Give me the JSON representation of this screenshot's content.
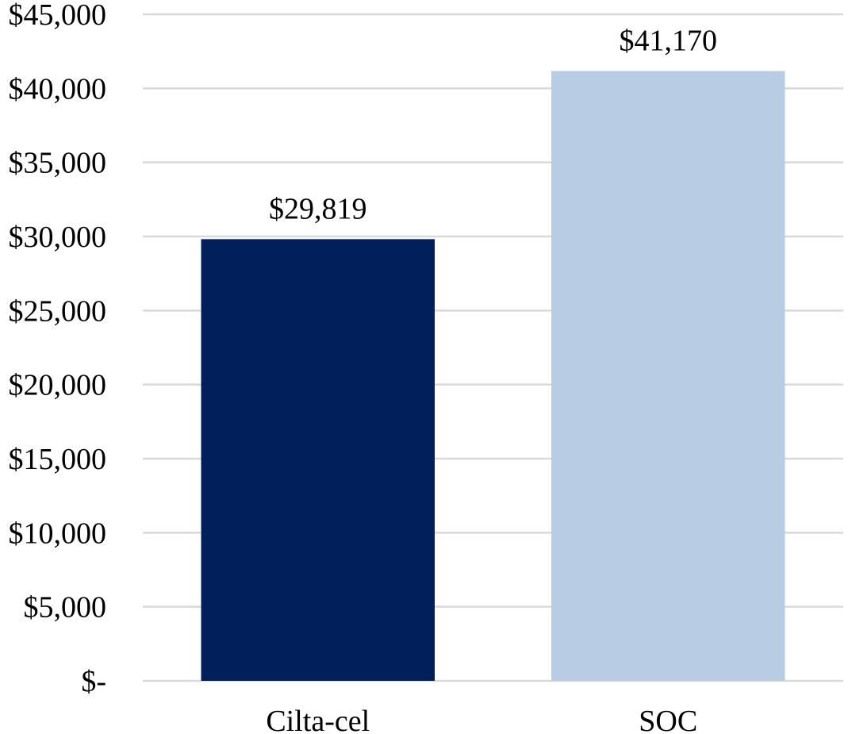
{
  "chart_data": {
    "type": "bar",
    "categories": [
      "Cilta-cel",
      "SOC"
    ],
    "values": [
      29819,
      41170
    ],
    "data_labels": [
      "$29,819",
      "$41,170"
    ],
    "ylim": [
      0,
      45000
    ],
    "yticks": [
      0,
      5000,
      10000,
      15000,
      20000,
      25000,
      30000,
      35000,
      40000,
      45000
    ],
    "ytick_labels": [
      "$-",
      "$5,000",
      "$10,000",
      "$15,000",
      "$20,000",
      "$25,000",
      "$30,000",
      "$35,000",
      "$40,000",
      "$45,000"
    ],
    "grid": true,
    "legend": "none",
    "colors": [
      "#001f5b",
      "#b8cce4"
    ],
    "gridline_color": "#d9d9d9"
  }
}
